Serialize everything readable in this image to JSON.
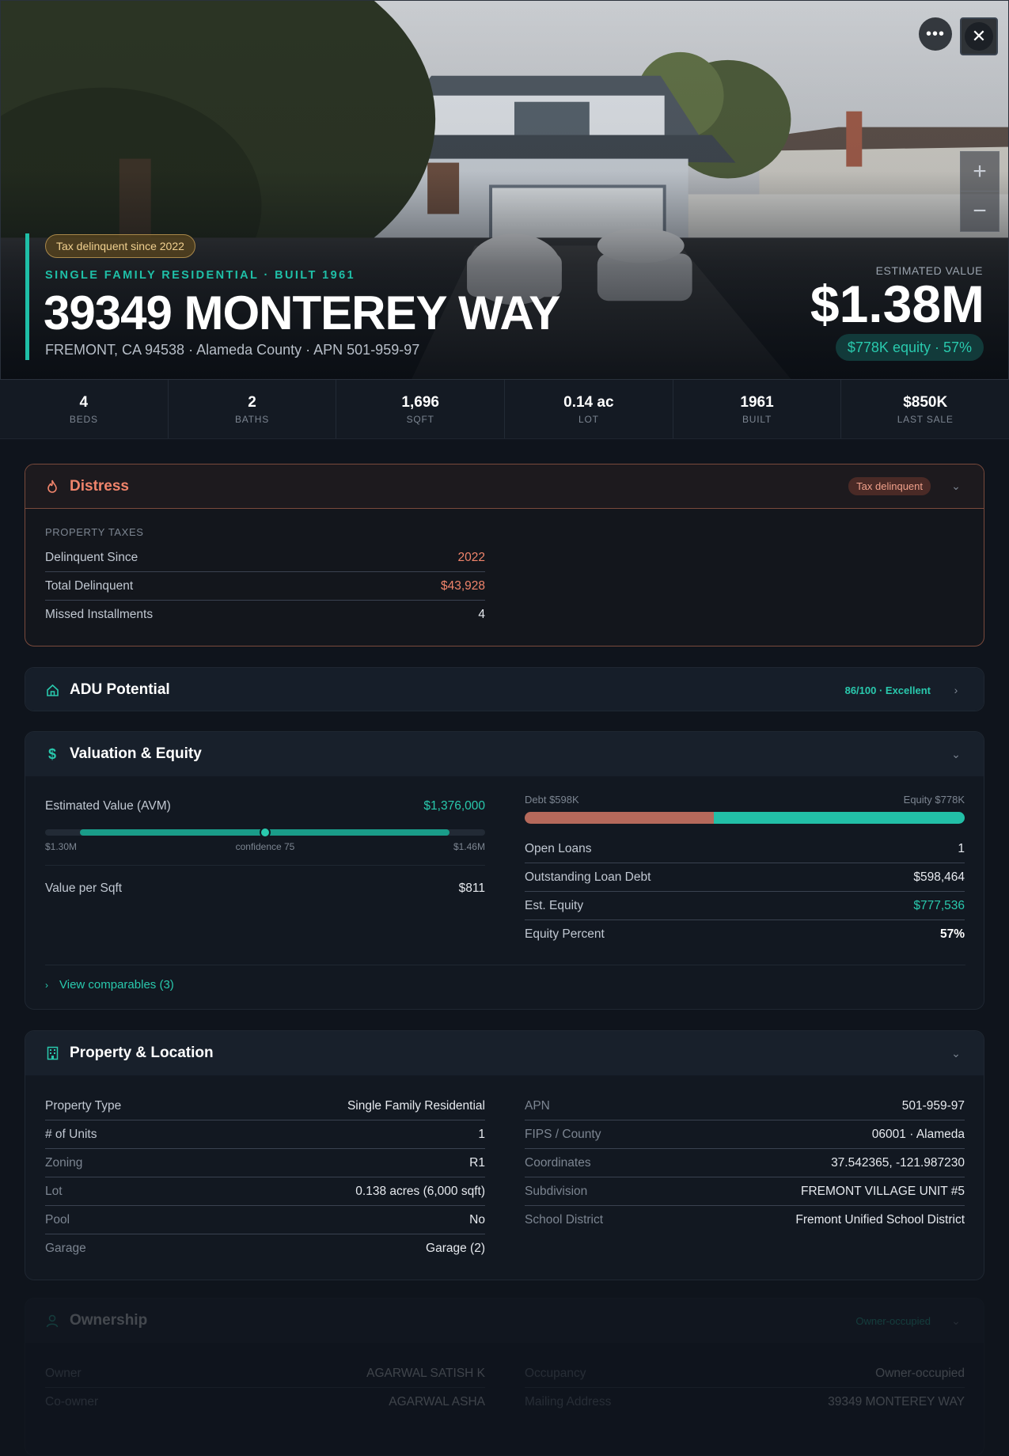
{
  "hero": {
    "tax_pill": "Tax delinquent since 2022",
    "subtitle": "SINGLE FAMILY RESIDENTIAL · BUILT 1961",
    "title": "39349 MONTEREY WAY",
    "address": "FREMONT, CA 94538 · Alameda County · APN 501-959-97",
    "estimated_value_label": "ESTIMATED VALUE",
    "estimated_value": "$1.38M",
    "equity_pill": "$778K equity · 57%",
    "more_icon": "ellipsis-icon",
    "close_icon": "close-icon",
    "zoom_in": "+",
    "zoom_out": "−"
  },
  "stats": [
    {
      "value": "4",
      "label": "BEDS"
    },
    {
      "value": "2",
      "label": "BATHS"
    },
    {
      "value": "1,696",
      "label": "SQFT"
    },
    {
      "value": "0.14 ac",
      "label": "LOT"
    },
    {
      "value": "1961",
      "label": "BUILT"
    },
    {
      "value": "$850K",
      "label": "LAST SALE"
    }
  ],
  "distress": {
    "title": "Distress",
    "badge": "Tax delinquent",
    "section": "PROPERTY TAXES",
    "rows": [
      {
        "k": "Delinquent Since",
        "v": "2022"
      },
      {
        "k": "Total Delinquent",
        "v": "$43,928"
      },
      {
        "k": "Missed Installments",
        "v": "4"
      }
    ]
  },
  "adu": {
    "title": "ADU Potential",
    "badge": "86/100 · Excellent"
  },
  "valuation": {
    "title": "Valuation & Equity",
    "avm_label": "Estimated Value (AVM)",
    "avm_value": "$1,376,000",
    "avm_low": "$1.30M",
    "avm_confidence": "confidence 75",
    "avm_high": "$1.46M",
    "avm_position": 0.5,
    "vps_label": "Value per Sqft",
    "vps_value": "$811",
    "debt_label": "Debt $598K",
    "equity_label": "Equity $778K",
    "debt_fraction": 0.43,
    "rows": [
      {
        "k": "Open Loans",
        "v": "1"
      },
      {
        "k": "Outstanding Loan Debt",
        "v": "$598,464"
      },
      {
        "k": "Est. Equity",
        "v": "$777,536"
      },
      {
        "k": "Equity Percent",
        "v": "57%"
      }
    ],
    "comparables": "View comparables (3)"
  },
  "property": {
    "title": "Property & Location",
    "left": [
      {
        "k": "Property Type",
        "v": "Single Family Residential"
      },
      {
        "k": "# of Units",
        "v": "1"
      },
      {
        "k": "Zoning",
        "v": "R1"
      },
      {
        "k": "Lot",
        "v": "0.138 acres (6,000 sqft)"
      },
      {
        "k": "Pool",
        "v": "No"
      },
      {
        "k": "Garage",
        "v": "Garage (2)"
      }
    ],
    "right": [
      {
        "k": "APN",
        "v": "501-959-97"
      },
      {
        "k": "FIPS / County",
        "v": "06001 · Alameda"
      },
      {
        "k": "Coordinates",
        "v": "37.542365, -121.987230"
      },
      {
        "k": "Subdivision",
        "v": "FREMONT VILLAGE UNIT #5"
      },
      {
        "k": "School District",
        "v": "Fremont Unified School District"
      }
    ]
  },
  "ownership": {
    "title": "Ownership",
    "badge": "Owner-occupied",
    "left": [
      {
        "k": "Owner",
        "v": "AGARWAL SATISH K"
      },
      {
        "k": "Co-owner",
        "v": "AGARWAL ASHA"
      }
    ],
    "right": [
      {
        "k": "Occupancy",
        "v": "Owner-occupied"
      },
      {
        "k": "Mailing Address",
        "v": "39349 MONTEREY WAY"
      }
    ]
  }
}
